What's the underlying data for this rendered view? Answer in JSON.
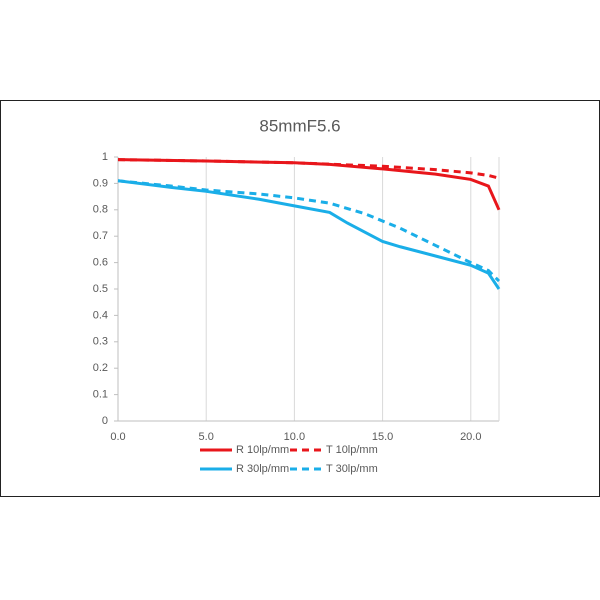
{
  "chart_data": {
    "type": "line",
    "title": "85mmF5.6",
    "series": [
      {
        "name": "R 10lp/mm",
        "color": "#e8161b",
        "dash": false,
        "x": [
          0,
          5,
          10,
          12,
          15,
          18,
          20,
          21,
          21.6
        ],
        "values": [
          0.99,
          0.985,
          0.978,
          0.972,
          0.955,
          0.935,
          0.915,
          0.89,
          0.8
        ]
      },
      {
        "name": "T 10lp/mm",
        "color": "#e8161b",
        "dash": true,
        "x": [
          0,
          5,
          10,
          15,
          18,
          20,
          21,
          21.6
        ],
        "values": [
          0.99,
          0.985,
          0.978,
          0.965,
          0.952,
          0.94,
          0.93,
          0.92
        ]
      },
      {
        "name": "R 30lp/mm",
        "color": "#1aaee8",
        "dash": false,
        "x": [
          0,
          3,
          5,
          8,
          10,
          12,
          13,
          15,
          16,
          18,
          20,
          21,
          21.6
        ],
        "values": [
          0.91,
          0.885,
          0.87,
          0.84,
          0.815,
          0.79,
          0.75,
          0.68,
          0.66,
          0.625,
          0.59,
          0.56,
          0.5
        ]
      },
      {
        "name": "T 30lp/mm",
        "color": "#1aaee8",
        "dash": true,
        "x": [
          0,
          3,
          5,
          8,
          10,
          12,
          14,
          16,
          18,
          20,
          21,
          21.6
        ],
        "values": [
          0.91,
          0.89,
          0.875,
          0.86,
          0.845,
          0.825,
          0.785,
          0.73,
          0.665,
          0.6,
          0.57,
          0.53
        ]
      }
    ],
    "xlim": [
      0,
      21.6
    ],
    "ylim": [
      0,
      1
    ],
    "xticks": [
      {
        "value": 0,
        "label": "0.0"
      },
      {
        "value": 5,
        "label": "5.0"
      },
      {
        "value": 10,
        "label": "10.0"
      },
      {
        "value": 15,
        "label": "15.0"
      },
      {
        "value": 20,
        "label": "20.0"
      }
    ],
    "yticks": [
      0,
      0.1,
      0.2,
      0.3,
      0.4,
      0.5,
      0.6,
      0.7,
      0.8,
      0.9,
      1
    ],
    "grid": "x"
  }
}
